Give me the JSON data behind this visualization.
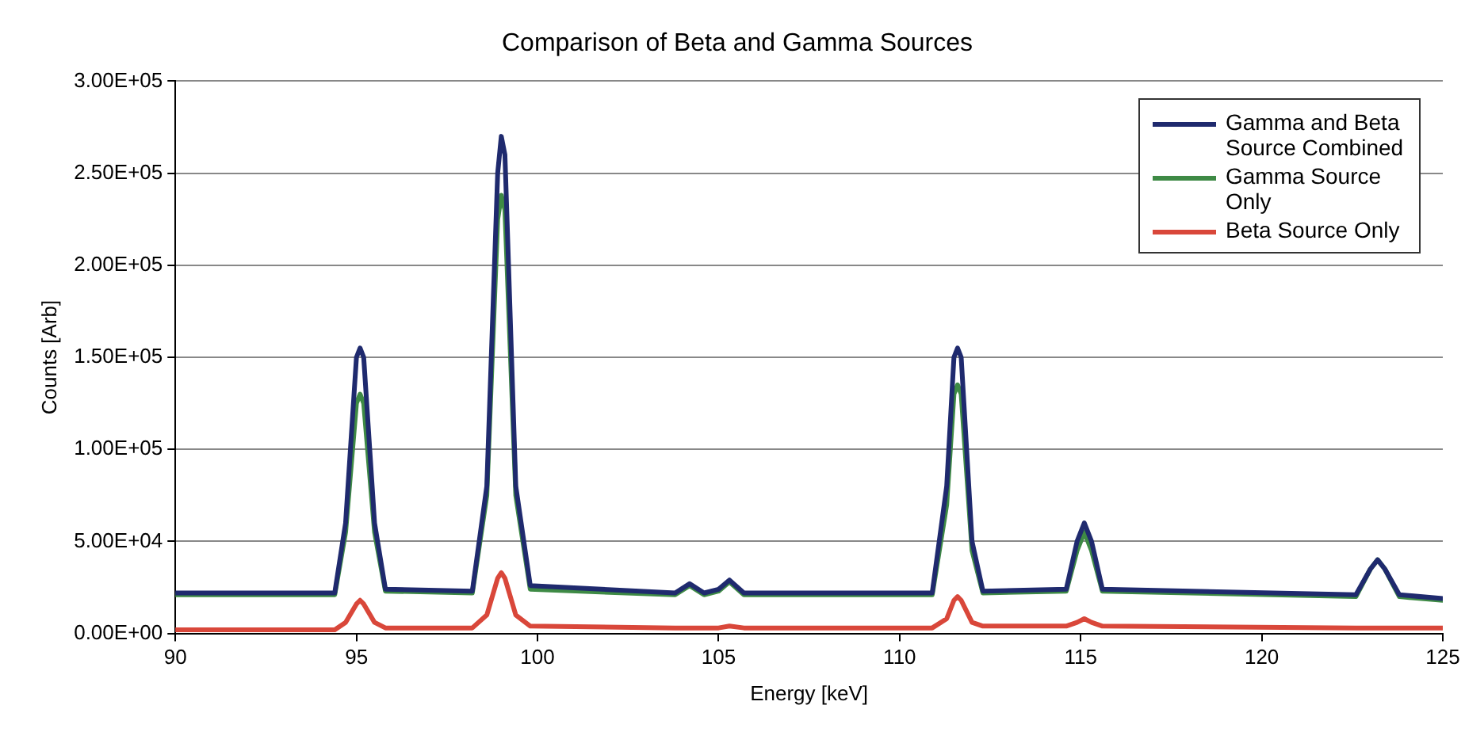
{
  "chart_data": {
    "type": "line",
    "title": "Comparison of Beta and Gamma Sources",
    "xlabel": "Energy [keV]",
    "ylabel": "Counts [Arb]",
    "x": [
      90,
      94.4,
      94.7,
      95.0,
      95.1,
      95.2,
      95.5,
      95.8,
      98.2,
      98.6,
      98.9,
      99.0,
      99.1,
      99.4,
      99.8,
      103.8,
      104.2,
      104.6,
      105.0,
      105.3,
      105.7,
      110.9,
      111.3,
      111.5,
      111.6,
      111.7,
      112.0,
      112.3,
      114.6,
      114.9,
      115.1,
      115.3,
      115.6,
      122.6,
      123.0,
      123.2,
      123.4,
      123.8,
      125
    ],
    "series": [
      {
        "name": "Gamma and Beta Source Combined",
        "color": "#1f2a6e",
        "values": [
          22000,
          22000,
          60000,
          150000,
          155000,
          150000,
          60000,
          24000,
          23000,
          80000,
          250000,
          270000,
          260000,
          80000,
          26000,
          22000,
          27000,
          22000,
          24000,
          29000,
          22000,
          22000,
          80000,
          150000,
          155000,
          150000,
          50000,
          23000,
          24000,
          50000,
          60000,
          50000,
          24000,
          21000,
          35000,
          40000,
          35000,
          21000,
          19000
        ]
      },
      {
        "name": "Gamma Source Only",
        "color": "#3e8a45",
        "values": [
          21000,
          21000,
          55000,
          125000,
          130000,
          125000,
          55000,
          23000,
          22000,
          75000,
          225000,
          238000,
          230000,
          75000,
          24000,
          21000,
          26000,
          21000,
          23000,
          28000,
          21000,
          21000,
          70000,
          130000,
          135000,
          130000,
          45000,
          22000,
          23000,
          45000,
          55000,
          45000,
          23000,
          20000,
          35000,
          40000,
          35000,
          20000,
          18000
        ]
      },
      {
        "name": "Beta Source Only",
        "color": "#d9473a",
        "values": [
          2000,
          2000,
          6000,
          16000,
          18000,
          16000,
          6000,
          3000,
          3000,
          10000,
          30000,
          33000,
          30000,
          10000,
          4000,
          3000,
          3000,
          3000,
          3000,
          4000,
          3000,
          3000,
          8000,
          18000,
          20000,
          18000,
          6000,
          4000,
          4000,
          6000,
          8000,
          6000,
          4000,
          3000,
          3000,
          3000,
          3000,
          3000,
          3000
        ]
      }
    ],
    "xlim": [
      90,
      125
    ],
    "xticks": [
      90,
      95,
      100,
      105,
      110,
      115,
      120,
      125
    ],
    "ylim": [
      0,
      300000
    ],
    "yticks": [
      {
        "value": 0,
        "label": "0.00E+00"
      },
      {
        "value": 50000,
        "label": "5.00E+04"
      },
      {
        "value": 100000,
        "label": "1.00E+05"
      },
      {
        "value": 150000,
        "label": "1.50E+05"
      },
      {
        "value": 200000,
        "label": "2.00E+05"
      },
      {
        "value": 250000,
        "label": "2.50E+05"
      },
      {
        "value": 300000,
        "label": "3.00E+05"
      }
    ],
    "grid": "y",
    "legend": "top right",
    "marker": "none",
    "line_style": "solid"
  }
}
